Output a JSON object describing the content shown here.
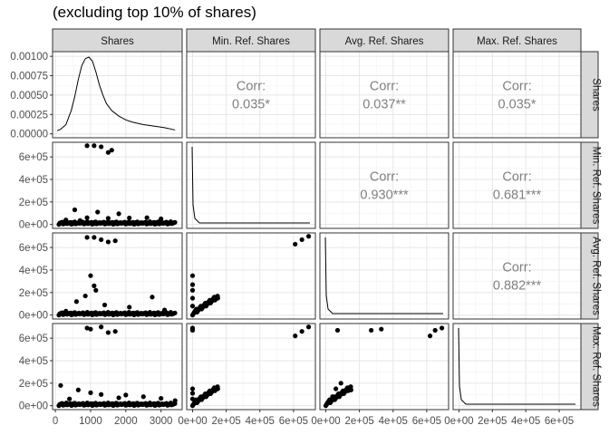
{
  "title": "(excluding top 10% of shares)",
  "chart_data": {
    "type": "scatter",
    "variables": [
      "Shares",
      "Min. Ref. Shares",
      "Avg. Ref. Shares",
      "Max. Ref. Shares"
    ],
    "axes": {
      "Shares": {
        "diag_y_ticks": [
          "0.00000",
          "0.00025",
          "0.00050",
          "0.00075",
          "0.00100"
        ],
        "diag_y_values": [
          0,
          0.00025,
          0.0005,
          0.00075,
          0.001
        ],
        "diag_ylim": [
          -5e-05,
          0.00106
        ],
        "x_ticks": [
          "0",
          "1000",
          "2000",
          "3000"
        ],
        "x_values": [
          0,
          1000,
          2000,
          3000
        ],
        "xlim": [
          -80,
          3600
        ]
      },
      "Min. Ref. Shares": {
        "y_ticks": [
          "0e+00",
          "2e+05",
          "4e+05",
          "6e+05"
        ],
        "y_values": [
          0,
          200000,
          400000,
          600000
        ],
        "lim": [
          -35000,
          730000
        ],
        "x_ticks": [
          "0e+00",
          "2e+05",
          "4e+05",
          "6e+05"
        ],
        "x_values": [
          0,
          200000,
          400000,
          600000
        ]
      },
      "Avg. Ref. Shares": {
        "y_ticks": [
          "0e+00",
          "2e+05",
          "4e+05",
          "6e+05"
        ],
        "y_values": [
          0,
          200000,
          400000,
          600000
        ],
        "lim": [
          -35000,
          730000
        ],
        "x_ticks": [
          "0e+00",
          "2e+05",
          "4e+05",
          "6e+05"
        ],
        "x_values": [
          0,
          200000,
          400000,
          600000
        ]
      },
      "Max. Ref. Shares": {
        "y_ticks": [
          "0e+00",
          "2e+05",
          "4e+05",
          "6e+05"
        ],
        "y_values": [
          0,
          200000,
          400000,
          600000
        ],
        "lim": [
          -35000,
          730000
        ],
        "x_ticks": [
          "0e+00",
          "2e+05",
          "4e+05",
          "6e+05"
        ],
        "x_values": [
          0,
          200000,
          400000,
          600000
        ]
      }
    },
    "correlations": [
      {
        "row": 0,
        "col": 1,
        "label": "Corr:",
        "value": "0.035*"
      },
      {
        "row": 0,
        "col": 2,
        "label": "Corr:",
        "value": "0.037**"
      },
      {
        "row": 0,
        "col": 3,
        "label": "Corr:",
        "value": "0.035*"
      },
      {
        "row": 1,
        "col": 2,
        "label": "Corr:",
        "value": "0.930***"
      },
      {
        "row": 1,
        "col": 3,
        "label": "Corr:",
        "value": "0.681***"
      },
      {
        "row": 2,
        "col": 3,
        "label": "Corr:",
        "value": "0.882***"
      }
    ],
    "density_shares": [
      [
        50,
        4e-05
      ],
      [
        150,
        6e-05
      ],
      [
        300,
        0.00012
      ],
      [
        450,
        0.0003
      ],
      [
        550,
        0.00048
      ],
      [
        650,
        0.0007
      ],
      [
        750,
        0.00088
      ],
      [
        850,
        0.00097
      ],
      [
        950,
        0.00099
      ],
      [
        1050,
        0.00094
      ],
      [
        1150,
        0.0008
      ],
      [
        1250,
        0.00063
      ],
      [
        1350,
        0.0005
      ],
      [
        1450,
        0.00039
      ],
      [
        1600,
        0.0003
      ],
      [
        1800,
        0.00023
      ],
      [
        2000,
        0.00018
      ],
      [
        2200,
        0.00015
      ],
      [
        2500,
        0.00012
      ],
      [
        2800,
        0.0001
      ],
      [
        3100,
        8e-05
      ],
      [
        3400,
        5e-05
      ]
    ],
    "density_skewed_peak": [
      3e-05,
      2e-06
    ],
    "scatter": {
      "shares_vs_min": [
        [
          900,
          700000
        ],
        [
          1100,
          700000
        ],
        [
          1300,
          690000
        ],
        [
          1500,
          640000
        ],
        [
          1600,
          660000
        ],
        [
          550,
          130000
        ],
        [
          1200,
          110000
        ],
        [
          1800,
          95000
        ],
        [
          900,
          60000
        ],
        [
          1500,
          55000
        ],
        [
          2100,
          58000
        ],
        [
          2600,
          60000
        ],
        [
          3000,
          50000
        ],
        [
          300,
          40000
        ],
        [
          700,
          35000
        ]
      ],
      "shares_vs_avg": [
        [
          900,
          690000
        ],
        [
          1100,
          690000
        ],
        [
          1300,
          670000
        ],
        [
          1500,
          650000
        ],
        [
          1700,
          660000
        ],
        [
          1000,
          350000
        ],
        [
          1100,
          260000
        ],
        [
          1150,
          220000
        ],
        [
          850,
          170000
        ],
        [
          2750,
          160000
        ],
        [
          600,
          120000
        ],
        [
          1400,
          90000
        ],
        [
          2100,
          70000
        ],
        [
          3100,
          45000
        ],
        [
          300,
          35000
        ]
      ],
      "shares_vs_max": [
        [
          900,
          690000
        ],
        [
          1000,
          680000
        ],
        [
          1300,
          700000
        ],
        [
          1500,
          650000
        ],
        [
          1700,
          660000
        ],
        [
          150,
          180000
        ],
        [
          650,
          140000
        ],
        [
          1000,
          115000
        ],
        [
          1300,
          100000
        ],
        [
          2000,
          95000
        ],
        [
          2500,
          80000
        ],
        [
          3000,
          65000
        ],
        [
          3400,
          45000
        ],
        [
          400,
          60000
        ],
        [
          1800,
          70000
        ]
      ],
      "min_vs_avg": [
        [
          610000,
          630000
        ],
        [
          650000,
          670000
        ],
        [
          690000,
          700000
        ],
        [
          0,
          350000
        ],
        [
          0,
          270000
        ],
        [
          0,
          220000
        ],
        [
          0,
          150000
        ],
        [
          0,
          80000
        ],
        [
          20000,
          30000
        ],
        [
          40000,
          60000
        ],
        [
          70000,
          85000
        ],
        [
          100000,
          110000
        ],
        [
          130000,
          140000
        ],
        [
          150000,
          150000
        ]
      ],
      "min_vs_max": [
        [
          0,
          690000
        ],
        [
          0,
          680000
        ],
        [
          0,
          670000
        ],
        [
          610000,
          620000
        ],
        [
          650000,
          660000
        ],
        [
          690000,
          700000
        ],
        [
          0,
          150000
        ],
        [
          0,
          110000
        ],
        [
          0,
          60000
        ],
        [
          30000,
          50000
        ],
        [
          60000,
          80000
        ],
        [
          90000,
          100000
        ],
        [
          120000,
          130000
        ],
        [
          150000,
          150000
        ]
      ],
      "avg_vs_max": [
        [
          70000,
          670000
        ],
        [
          270000,
          670000
        ],
        [
          330000,
          680000
        ],
        [
          620000,
          620000
        ],
        [
          650000,
          670000
        ],
        [
          690000,
          690000
        ],
        [
          90000,
          200000
        ],
        [
          60000,
          150000
        ],
        [
          110000,
          130000
        ],
        [
          150000,
          140000
        ],
        [
          40000,
          80000
        ],
        [
          20000,
          40000
        ],
        [
          80000,
          100000
        ]
      ]
    }
  }
}
